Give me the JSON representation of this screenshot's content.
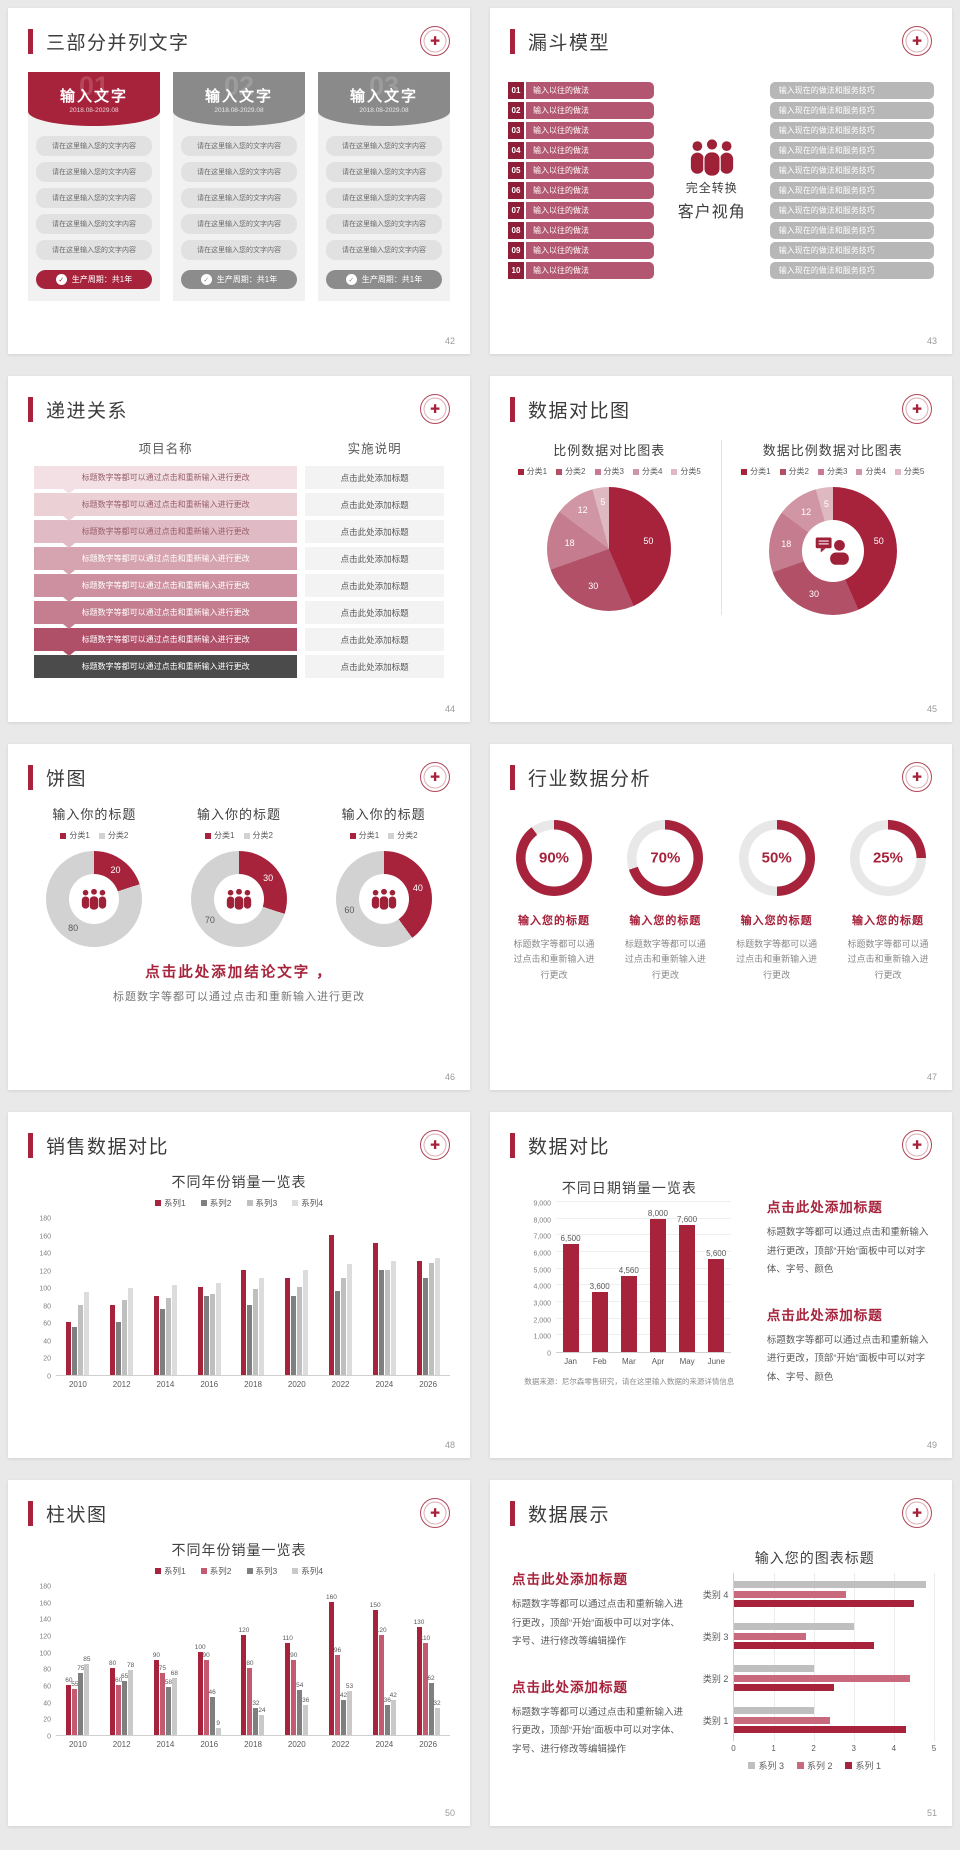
{
  "theme": {
    "primary": "#A7233C",
    "pink": "#C45A70",
    "funnel_red": "#B25672",
    "funnel_num": "#8F1F38",
    "gray_bar": "#B7B7B7",
    "gray_dark": "#7F7F7F",
    "gray_mid": "#BFBFBF",
    "gray_light": "#DCDCDC",
    "track": "#E8E8E8"
  },
  "slides": [
    {
      "title": "三部分并列文字",
      "page": "42",
      "cards": [
        {
          "number": "01",
          "header": "输入文字",
          "date": "2018.08-2029.08",
          "accent": "red",
          "rows": [
            "请在这里输入您的文字内容",
            "请在这里输入您的文字内容",
            "请在这里输入您的文字内容",
            "请在这里输入您的文字内容",
            "请在这里输入您的文字内容"
          ],
          "footer": "生产周期：共1年"
        },
        {
          "number": "02",
          "header": "输入文字",
          "date": "2018.08-2029.08",
          "accent": "gray",
          "rows": [
            "请在这里输入您的文字内容",
            "请在这里输入您的文字内容",
            "请在这里输入您的文字内容",
            "请在这里输入您的文字内容",
            "请在这里输入您的文字内容"
          ],
          "footer": "生产周期：共1年"
        },
        {
          "number": "03",
          "header": "输入文字",
          "date": "2018.08-2029.08",
          "accent": "gray",
          "rows": [
            "请在这里输入您的文字内容",
            "请在这里输入您的文字内容",
            "请在这里输入您的文字内容",
            "请在这里输入您的文字内容",
            "请在这里输入您的文字内容"
          ],
          "footer": "生产周期：共1年"
        }
      ]
    },
    {
      "title": "漏斗模型",
      "page": "43",
      "left_items": [
        {
          "num": "01",
          "label": "输入以往的做法"
        },
        {
          "num": "02",
          "label": "输入以往的做法"
        },
        {
          "num": "03",
          "label": "输入以往的做法"
        },
        {
          "num": "04",
          "label": "输入以往的做法"
        },
        {
          "num": "05",
          "label": "输入以往的做法"
        },
        {
          "num": "06",
          "label": "输入以往的做法"
        },
        {
          "num": "07",
          "label": "输入以往的做法"
        },
        {
          "num": "08",
          "label": "输入以往的做法"
        },
        {
          "num": "09",
          "label": "输入以往的做法"
        },
        {
          "num": "10",
          "label": "输入以往的做法"
        }
      ],
      "center_line1": "完全转换",
      "center_line2": "客户视角",
      "right_items": [
        "输入现在的做法和服务技巧",
        "输入现在的做法和服务技巧",
        "输入现在的做法和服务技巧",
        "输入现在的做法和服务技巧",
        "输入现在的做法和服务技巧",
        "输入现在的做法和服务技巧",
        "输入现在的做法和服务技巧",
        "输入现在的做法和服务技巧",
        "输入现在的做法和服务技巧",
        "输入现在的做法和服务技巧"
      ]
    },
    {
      "title": "递进关系",
      "page": "44",
      "col1": "项目名称",
      "col2": "实施说明",
      "row_label": "标题数字等都可以通过点击和重新输入进行更改",
      "row_desc": "点击此处添加标题",
      "row_colors": [
        "#F2E0E4",
        "#EBD0D6",
        "#E0BAC4",
        "#D6A4B0",
        "#CD90A0",
        "#C47E90",
        "#B04F68",
        "#4B4B4B"
      ]
    },
    {
      "title": "数据对比图",
      "page": "45"
    },
    {
      "title": "饼图",
      "page": "46",
      "conclusion_title": "点击此处添加结论文字 ，",
      "conclusion_text": "标题数字等都可以通过点击和重新输入进行更改"
    },
    {
      "title": "行业数据分析",
      "page": "47"
    },
    {
      "title": "销售数据对比",
      "page": "48"
    },
    {
      "title": "数据对比",
      "page": "49",
      "blocks": [
        {
          "heading": "点击此处添加标题",
          "body": "标题数字等都可以通过点击和重新输入进行更改，顶部“开始”面板中可以对字体、字号、颜色"
        },
        {
          "heading": "点击此处添加标题",
          "body": "标题数字等都可以通过点击和重新输入进行更改，顶部“开始”面板中可以对字体、字号、颜色"
        }
      ],
      "footnote": "数据来源：尼尔森零售研究，请在这里输入数据的来源详情信息"
    },
    {
      "title": "柱状图",
      "page": "50"
    },
    {
      "title": "数据展示",
      "page": "51",
      "blocks": [
        {
          "heading": "点击此处添加标题",
          "body": "标题数字等都可以通过点击和重新输入进行更改，顶部“开始”面板中可以对字体、字号、进行修改等编辑操作"
        },
        {
          "heading": "点击此处添加标题",
          "body": "标题数字等都可以通过点击和重新输入进行更改，顶部“开始”面板中可以对字体、字号、进行修改等编辑操作"
        }
      ]
    }
  ],
  "chart_data": [
    {
      "slide": "45",
      "type": "pie",
      "title": "比例数据对比图表",
      "legend": [
        "分类1",
        "分类2",
        "分类3",
        "分类4",
        "分类5"
      ],
      "values": [
        50,
        30,
        18,
        12,
        5
      ],
      "colors": [
        "#A7233C",
        "#B25067",
        "#C57C8E",
        "#D096A5",
        "#DEB9C2"
      ]
    },
    {
      "slide": "45",
      "type": "pie",
      "donut": true,
      "title": "数据比例数据对比图表",
      "legend": [
        "分类1",
        "分类2",
        "分类3",
        "分类4",
        "分类5"
      ],
      "values": [
        50,
        30,
        18,
        12,
        5
      ],
      "colors": [
        "#A7233C",
        "#B25067",
        "#C57C8E",
        "#D096A5",
        "#DEB9C2"
      ],
      "center_icon": "person-chat-icon"
    },
    {
      "slide": "46",
      "type": "pie",
      "donut": true,
      "title": "输入你的标题",
      "legend": [
        "分类1",
        "分类2"
      ],
      "values": [
        20,
        80
      ],
      "colors": [
        "#A7233C",
        "#D2D2D2"
      ],
      "center_icon": "people-icon"
    },
    {
      "slide": "46",
      "type": "pie",
      "donut": true,
      "title": "输入你的标题",
      "legend": [
        "分类1",
        "分类2"
      ],
      "values": [
        30,
        70
      ],
      "colors": [
        "#A7233C",
        "#D2D2D2"
      ],
      "center_icon": "people-icon"
    },
    {
      "slide": "46",
      "type": "pie",
      "donut": true,
      "title": "输入你的标题",
      "legend": [
        "分类1",
        "分类2"
      ],
      "values": [
        40,
        60
      ],
      "colors": [
        "#A7233C",
        "#D2D2D2"
      ],
      "center_icon": "people-icon"
    },
    {
      "slide": "47",
      "type": "progress-rings",
      "color": "#A7233C",
      "track": "#E8E8E8",
      "ring_title": "输入您的标题",
      "ring_caption": "标题数字等都可以通过点击和重新输入进行更改",
      "rings": [
        {
          "value": 90,
          "label": "90%"
        },
        {
          "value": 70,
          "label": "70%"
        },
        {
          "value": 50,
          "label": "50%"
        },
        {
          "value": 25,
          "label": "25%"
        }
      ]
    },
    {
      "slide": "48",
      "type": "bar",
      "title": "不同年份销量一览表",
      "categories": [
        "2010",
        "2012",
        "2014",
        "2016",
        "2018",
        "2020",
        "2022",
        "2024",
        "2026"
      ],
      "series": [
        {
          "name": "系列1",
          "color": "#A7233C",
          "values": [
            60,
            80,
            90,
            100,
            120,
            110,
            160,
            150,
            130
          ]
        },
        {
          "name": "系列2",
          "color": "#7F7F7F",
          "values": [
            55,
            60,
            75,
            90,
            80,
            90,
            96,
            120,
            110
          ]
        },
        {
          "name": "系列3",
          "color": "#BFBFBF",
          "values": [
            80,
            86,
            88,
            92,
            98,
            100,
            110,
            120,
            128
          ]
        },
        {
          "name": "系列4",
          "color": "#DCDCDC",
          "values": [
            95,
            99,
            102,
            105,
            110,
            120,
            126,
            130,
            133
          ]
        }
      ],
      "ylim": [
        0,
        180
      ],
      "ytick": 20,
      "grid": false,
      "legend_position": "top"
    },
    {
      "slide": "49",
      "type": "bar",
      "title": "不同日期销量一览表",
      "categories": [
        "Jan",
        "Feb",
        "Mar",
        "Apr",
        "May",
        "June"
      ],
      "series": [
        {
          "name": "销量",
          "color": "#A7233C",
          "values": [
            6500,
            3600,
            4560,
            8000,
            7600,
            5600
          ]
        }
      ],
      "data_labels": [
        "6,500",
        "3,600",
        "4,560",
        "8,000",
        "7,600",
        "5,600"
      ],
      "ylim": [
        0,
        9000
      ],
      "ytick": 1000,
      "grid": true,
      "legend_position": "none"
    },
    {
      "slide": "50",
      "type": "bar",
      "title": "不同年份销量一览表",
      "categories": [
        "2010",
        "2012",
        "2014",
        "2016",
        "2018",
        "2020",
        "2022",
        "2024",
        "2026"
      ],
      "series": [
        {
          "name": "系列1",
          "color": "#A7233C",
          "values": [
            60,
            80,
            90,
            100,
            120,
            110,
            160,
            150,
            130
          ]
        },
        {
          "name": "系列2",
          "color": "#C45A70",
          "values": [
            55,
            60,
            75,
            90,
            80,
            90,
            96,
            120,
            110
          ]
        },
        {
          "name": "系列3",
          "color": "#7F7F7F",
          "values": [
            75,
            65,
            58,
            46,
            32,
            54,
            42,
            36,
            62
          ]
        },
        {
          "name": "系列4",
          "color": "#C9C9C9",
          "values": [
            85,
            78,
            68,
            9,
            24,
            36,
            53,
            42,
            32
          ]
        }
      ],
      "ylim": [
        0,
        180
      ],
      "ytick": 20,
      "grid": false,
      "show_value_labels": true,
      "legend_position": "top"
    },
    {
      "slide": "51",
      "type": "hbar",
      "title": "输入您的图表标题",
      "categories": [
        "类别 4",
        "类别 3",
        "类别 2",
        "类别 1"
      ],
      "series": [
        {
          "name": "系列 3",
          "color": "#BFBFBF",
          "values": [
            4.8,
            3.0,
            2.0,
            2.0
          ]
        },
        {
          "name": "系列 2",
          "color": "#C9697E",
          "values": [
            2.8,
            1.8,
            4.4,
            2.4
          ]
        },
        {
          "name": "系列 1",
          "color": "#A7233C",
          "values": [
            4.5,
            3.5,
            2.5,
            4.3
          ]
        }
      ],
      "xlim": [
        0,
        5
      ],
      "xticks": [
        0,
        1,
        2,
        3,
        4,
        5
      ],
      "legend_position": "bottom"
    }
  ]
}
